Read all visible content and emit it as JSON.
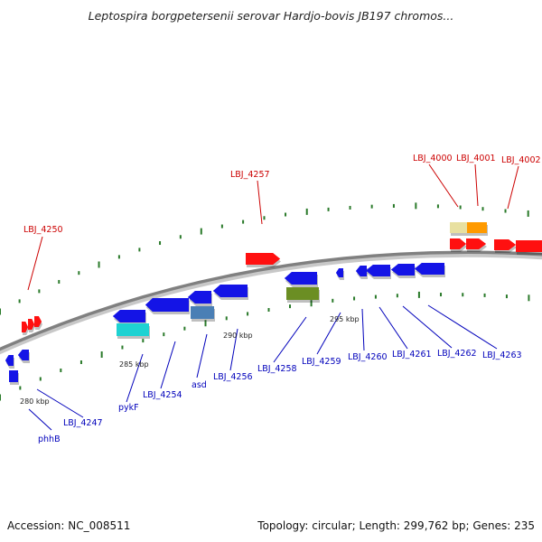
{
  "title": "Leptospira borgpetersenii serovar Hardjo-bovis JB197 chromos...",
  "footer": {
    "accession": "Accession: NC_008511",
    "summary": "Topology: circular; Length: 299,762 bp; Genes: 235"
  },
  "colors": {
    "backbone": "#808080",
    "forward_label": "#cc0000",
    "reverse_label": "#0000bb",
    "tick_marks": "#2a7a2a",
    "gene_blue": "#1414e6",
    "gene_red": "#ff1010",
    "gene_cyan": "#1ed2d2",
    "gene_steel": "#4a7fb5",
    "gene_olive": "#6b8e23",
    "gene_khaki": "#e8e0a0",
    "gene_orange": "#ff9a00"
  },
  "scale_labels": [
    "280 kbp",
    "285 kbp",
    "290 kbp",
    "295 kbp"
  ],
  "genes_top_labels": [
    "LBJ_4250",
    "LBJ_4257",
    "LBJ_4000",
    "LBJ_4001",
    "LBJ_4002"
  ],
  "genes_bottom_labels": [
    "phhB",
    "LBJ_4247",
    "pykF",
    "LBJ_4254",
    "asd",
    "LBJ_4256",
    "LBJ_4258",
    "LBJ_4259",
    "LBJ_4260",
    "LBJ_4261",
    "LBJ_4262",
    "LBJ_4263"
  ]
}
